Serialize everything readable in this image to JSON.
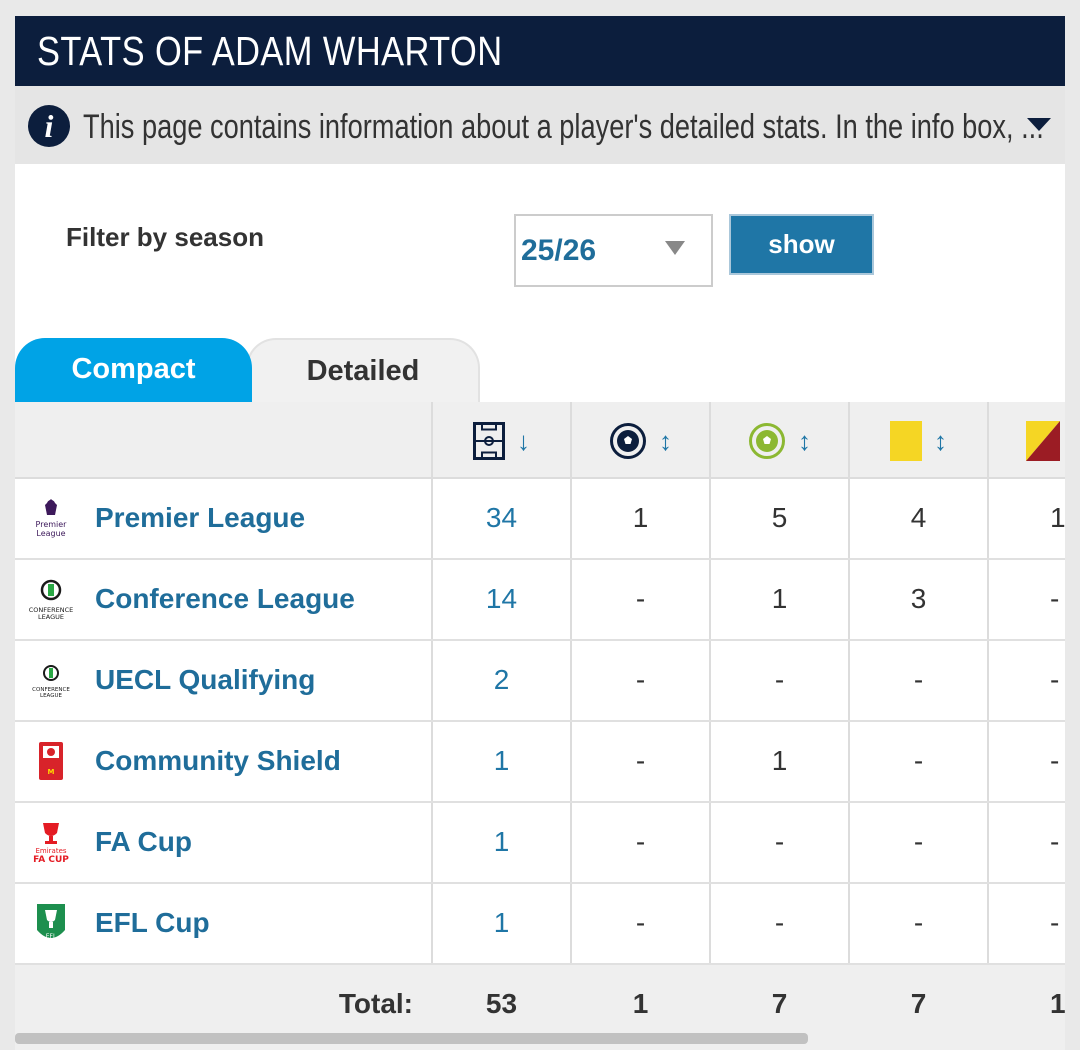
{
  "header": {
    "title": "STATS OF ADAM WHARTON"
  },
  "info": {
    "text": "This page contains information about a player's detailed stats. In the info box, ..."
  },
  "filter": {
    "label": "Filter by season",
    "season": "25/26",
    "show_label": "show"
  },
  "tabs": [
    {
      "label": "Compact",
      "active": true
    },
    {
      "label": "Detailed",
      "active": false
    }
  ],
  "columns": [
    {
      "icon": "pitch-appearances-icon",
      "sort": "↓"
    },
    {
      "icon": "ball-goals-icon",
      "sort": "↕"
    },
    {
      "icon": "ball-assists-icon",
      "sort": "↕"
    },
    {
      "icon": "yellow-card-icon",
      "sort": "↕"
    },
    {
      "icon": "second-yellow-card-icon"
    }
  ],
  "rows": [
    {
      "competition": "Premier League",
      "logo": "premier-league-logo",
      "values": [
        "34",
        "1",
        "5",
        "4",
        "1"
      ]
    },
    {
      "competition": "Conference League",
      "logo": "conference-league-logo",
      "values": [
        "14",
        "-",
        "1",
        "3",
        "-"
      ]
    },
    {
      "competition": "UECL Qualifying",
      "logo": "uecl-qualifying-logo",
      "values": [
        "2",
        "-",
        "-",
        "-",
        "-"
      ]
    },
    {
      "competition": "Community Shield",
      "logo": "community-shield-logo",
      "values": [
        "1",
        "-",
        "1",
        "-",
        "-"
      ]
    },
    {
      "competition": "FA Cup",
      "logo": "fa-cup-logo",
      "values": [
        "1",
        "-",
        "-",
        "-",
        "-"
      ]
    },
    {
      "competition": "EFL Cup",
      "logo": "efl-cup-logo",
      "values": [
        "1",
        "-",
        "-",
        "-",
        "-"
      ]
    }
  ],
  "totals": {
    "label": "Total:",
    "values": [
      "53",
      "1",
      "7",
      "7",
      "1"
    ]
  },
  "colors": {
    "navy": "#0c1e3d",
    "accent_blue": "#00a3e6",
    "link_blue": "#1f76a6",
    "yellow_card": "#f5d624",
    "red_card": "#9b1c24",
    "assist_green": "#8cb832"
  }
}
